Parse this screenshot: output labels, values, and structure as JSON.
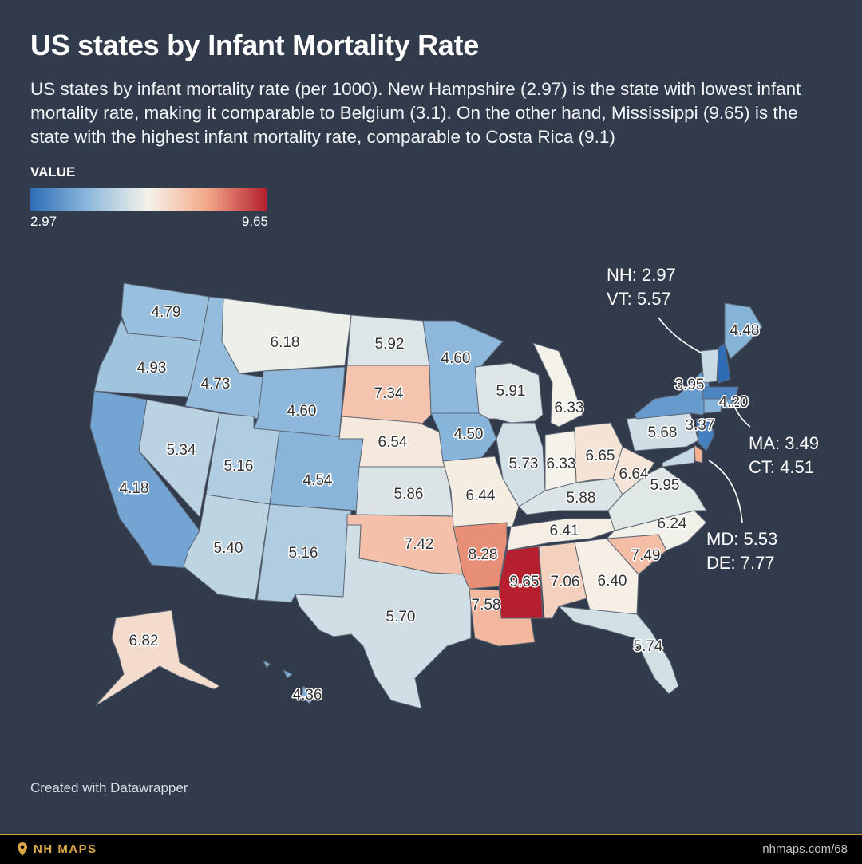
{
  "header": {
    "title": "US states by Infant Mortality Rate",
    "description": "US states by infant mortality rate (per 1000). New Hampshire (2.97) is the state with lowest infant mortality rate, making it comparable to Belgium (3.1). On the other hand, Mississippi (9.65) is the state with the highest infant mortality rate, comparable to Costa Rica (9.1)"
  },
  "legend": {
    "title": "VALUE",
    "min_label": "2.97",
    "max_label": "9.65",
    "colors": [
      "#2e6db6",
      "#8fbadc",
      "#f5f3ea",
      "#f3a788",
      "#b51f2e"
    ]
  },
  "states": [
    {
      "abbr": "WA",
      "label": "4.79",
      "value": 4.79
    },
    {
      "abbr": "OR",
      "label": "4.93",
      "value": 4.93
    },
    {
      "abbr": "CA",
      "label": "4.18",
      "value": 4.18
    },
    {
      "abbr": "ID",
      "label": "4.73",
      "value": 4.73
    },
    {
      "abbr": "NV",
      "label": "5.34",
      "value": 5.34
    },
    {
      "abbr": "MT",
      "label": "6.18",
      "value": 6.18
    },
    {
      "abbr": "WY",
      "label": "4.60",
      "value": 4.6
    },
    {
      "abbr": "UT",
      "label": "5.16",
      "value": 5.16
    },
    {
      "abbr": "AZ",
      "label": "5.40",
      "value": 5.4
    },
    {
      "abbr": "CO",
      "label": "4.54",
      "value": 4.54
    },
    {
      "abbr": "NM",
      "label": "5.16",
      "value": 5.16
    },
    {
      "abbr": "ND",
      "label": "5.92",
      "value": 5.92
    },
    {
      "abbr": "SD",
      "label": "7.34",
      "value": 7.34
    },
    {
      "abbr": "NE",
      "label": "6.54",
      "value": 6.54
    },
    {
      "abbr": "KS",
      "label": "5.86",
      "value": 5.86
    },
    {
      "abbr": "OK",
      "label": "7.42",
      "value": 7.42
    },
    {
      "abbr": "TX",
      "label": "5.70",
      "value": 5.7
    },
    {
      "abbr": "MN",
      "label": "4.60",
      "value": 4.6
    },
    {
      "abbr": "IA",
      "label": "4.50",
      "value": 4.5
    },
    {
      "abbr": "MO",
      "label": "6.44",
      "value": 6.44
    },
    {
      "abbr": "AR",
      "label": "8.28",
      "value": 8.28
    },
    {
      "abbr": "LA",
      "label": "7.58",
      "value": 7.58
    },
    {
      "abbr": "WI",
      "label": "5.91",
      "value": 5.91
    },
    {
      "abbr": "IL",
      "label": "5.73",
      "value": 5.73
    },
    {
      "abbr": "MI",
      "label": "6.33",
      "value": 6.33
    },
    {
      "abbr": "IN",
      "label": "6.33",
      "value": 6.33
    },
    {
      "abbr": "OH",
      "label": "6.65",
      "value": 6.65
    },
    {
      "abbr": "KY",
      "label": "5.88",
      "value": 5.88
    },
    {
      "abbr": "TN",
      "label": "6.41",
      "value": 6.41
    },
    {
      "abbr": "MS",
      "label": "9.65",
      "value": 9.65
    },
    {
      "abbr": "AL",
      "label": "7.06",
      "value": 7.06
    },
    {
      "abbr": "GA",
      "label": "6.40",
      "value": 6.4
    },
    {
      "abbr": "FL",
      "label": "5.74",
      "value": 5.74
    },
    {
      "abbr": "SC",
      "label": "7.49",
      "value": 7.49
    },
    {
      "abbr": "NC",
      "label": "6.24",
      "value": 6.24
    },
    {
      "abbr": "VA",
      "label": "5.95",
      "value": 5.95
    },
    {
      "abbr": "WV",
      "label": "6.64",
      "value": 6.64
    },
    {
      "abbr": "PA",
      "label": "5.68",
      "value": 5.68
    },
    {
      "abbr": "NY",
      "label": "3.95",
      "value": 3.95
    },
    {
      "abbr": "NJ",
      "label": "3.37",
      "value": 3.37
    },
    {
      "abbr": "ME",
      "label": "4.48",
      "value": 4.48
    },
    {
      "abbr": "RI",
      "label": "4.20",
      "value": 4.2
    },
    {
      "abbr": "AK",
      "label": "6.82",
      "value": 6.82
    },
    {
      "abbr": "HI",
      "label": "4.36",
      "value": 4.36
    },
    {
      "abbr": "NH",
      "label": "",
      "value": 2.97
    },
    {
      "abbr": "VT",
      "label": "",
      "value": 5.57
    },
    {
      "abbr": "MA",
      "label": "",
      "value": 3.49
    },
    {
      "abbr": "CT",
      "label": "",
      "value": 4.51
    },
    {
      "abbr": "MD",
      "label": "",
      "value": 5.53
    },
    {
      "abbr": "DE",
      "label": "",
      "value": 7.77
    }
  ],
  "callouts": {
    "nh_vt": [
      "NH: 2.97",
      "VT: 5.57"
    ],
    "ma_ct": [
      "MA: 3.49",
      "CT: 4.51"
    ],
    "md_de": [
      "MD: 5.53",
      "DE: 7.77"
    ]
  },
  "credit": "Created with Datawrapper",
  "footer": {
    "brand": "NH MAPS",
    "url": "nhmaps.com/68"
  }
}
